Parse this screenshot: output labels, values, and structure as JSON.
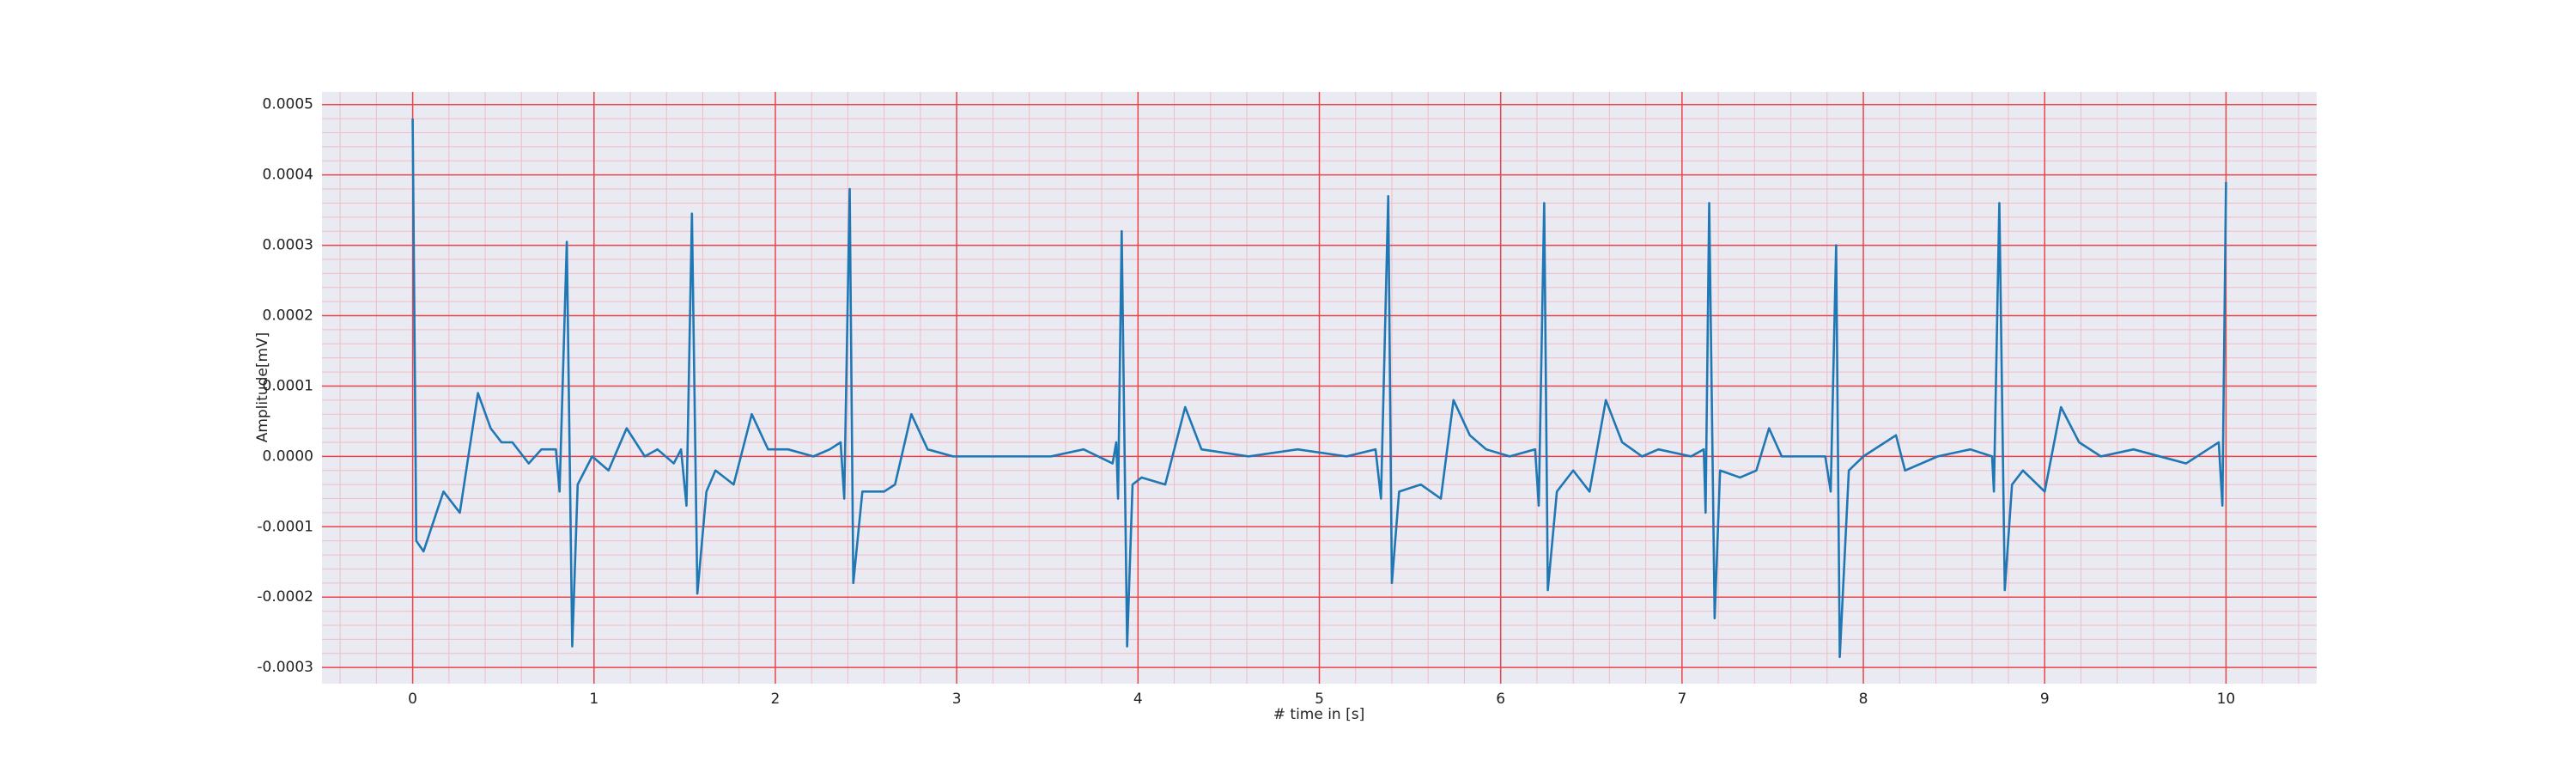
{
  "chart_data": {
    "type": "line",
    "xlabel": "# time in [s]",
    "ylabel": "Amplitude[mV]",
    "xlim": [
      -0.5,
      10.5
    ],
    "ylim": [
      -0.000323,
      0.000518
    ],
    "xticks": [
      0,
      1,
      2,
      3,
      4,
      5,
      6,
      7,
      8,
      9,
      10
    ],
    "yticks": [
      -0.0003,
      -0.0002,
      -0.0001,
      {
        "value": 0,
        "label": "0.0000"
      },
      0.0001,
      0.0002,
      0.0003,
      0.0004,
      0.0005
    ],
    "xticks_minor": [
      -0.4,
      -0.2,
      0.2,
      0.4,
      0.6,
      0.8,
      1.2,
      1.4,
      1.6,
      1.8,
      2.2,
      2.4,
      2.6,
      2.8,
      3.2,
      3.4,
      3.6,
      3.8,
      4.2,
      4.4,
      4.6,
      4.8,
      5.2,
      5.4,
      5.6,
      5.8,
      6.2,
      6.4,
      6.6,
      6.8,
      7.2,
      7.4,
      7.6,
      7.8,
      8.2,
      8.4,
      8.6,
      8.8,
      9.2,
      9.4,
      9.6,
      9.8,
      10.2,
      10.4
    ],
    "yticks_minor": [
      -0.00028,
      -0.00026,
      -0.00024,
      -0.00022,
      -0.00018,
      -0.00016,
      -0.00014,
      -0.00012,
      -8e-05,
      -6e-05,
      -4e-05,
      -2e-05,
      2e-05,
      4e-05,
      6e-05,
      8e-05,
      0.00012,
      0.00014,
      0.00016,
      0.00018,
      0.00022,
      0.00024,
      0.00026,
      0.00028,
      0.00032,
      0.00034,
      0.00036,
      0.00038,
      0.00042,
      0.00044,
      0.00046,
      0.00048
    ],
    "grid": true,
    "grid_color": "#e8454a",
    "minor_grid_color": "#f2bcc4",
    "background": "#eaeaf2",
    "x": [
      0.0,
      0.02,
      0.06,
      0.17,
      0.26,
      0.36,
      0.43,
      0.49,
      0.55,
      0.61,
      0.64,
      0.71,
      0.79,
      0.81,
      0.85,
      0.88,
      0.91,
      0.99,
      1.08,
      1.18,
      1.28,
      1.35,
      1.44,
      1.48,
      1.51,
      1.54,
      1.57,
      1.62,
      1.67,
      1.77,
      1.87,
      1.96,
      2.07,
      2.21,
      2.3,
      2.36,
      2.38,
      2.41,
      2.43,
      2.48,
      2.6,
      2.66,
      2.75,
      2.84,
      2.98,
      3.16,
      3.52,
      3.7,
      3.86,
      3.88,
      3.89,
      3.91,
      3.94,
      3.97,
      4.02,
      4.15,
      4.26,
      4.35,
      4.61,
      4.88,
      5.15,
      5.31,
      5.34,
      5.38,
      5.4,
      5.44,
      5.56,
      5.67,
      5.74,
      5.83,
      5.92,
      6.05,
      6.19,
      6.21,
      6.24,
      6.26,
      6.31,
      6.4,
      6.49,
      6.58,
      6.67,
      6.78,
      6.87,
      7.05,
      7.12,
      7.13,
      7.15,
      7.18,
      7.21,
      7.32,
      7.41,
      7.48,
      7.55,
      7.68,
      7.79,
      7.82,
      7.85,
      7.87,
      7.92,
      8.0,
      8.18,
      8.23,
      8.41,
      8.59,
      8.71,
      8.72,
      8.75,
      8.78,
      8.82,
      8.88,
      9.0,
      9.09,
      9.19,
      9.31,
      9.49,
      9.78,
      9.9,
      9.96,
      9.98,
      10.0
    ],
    "series": [
      {
        "color": "#1f77b4",
        "values": [
          0.00048,
          -0.00012,
          -0.000135,
          -5e-05,
          -8e-05,
          9e-05,
          4e-05,
          2e-05,
          2e-05,
          0,
          -1e-05,
          1e-05,
          1e-05,
          -5e-05,
          0.000305,
          -0.00027,
          -4e-05,
          0,
          -2e-05,
          4e-05,
          0,
          1e-05,
          -1e-05,
          1e-05,
          -7e-05,
          0.000345,
          -0.000195,
          -5e-05,
          -2e-05,
          -4e-05,
          6e-05,
          1e-05,
          1e-05,
          0,
          1e-05,
          2e-05,
          -6e-05,
          0.00038,
          -0.00018,
          -5e-05,
          -5e-05,
          -4e-05,
          6e-05,
          1e-05,
          0,
          0,
          0,
          1e-05,
          -1e-05,
          2e-05,
          -6e-05,
          0.00032,
          -0.00027,
          -4e-05,
          -3e-05,
          -4e-05,
          7e-05,
          1e-05,
          0,
          1e-05,
          0,
          1e-05,
          -6e-05,
          0.00037,
          -0.00018,
          -5e-05,
          -4e-05,
          -6e-05,
          8e-05,
          3e-05,
          1e-05,
          0,
          1e-05,
          -7e-05,
          0.00036,
          -0.00019,
          -5e-05,
          -2e-05,
          -5e-05,
          8e-05,
          2e-05,
          0,
          1e-05,
          0,
          1e-05,
          -8e-05,
          0.00036,
          -0.00023,
          -2e-05,
          -3e-05,
          -2e-05,
          4e-05,
          0,
          0,
          0,
          -5e-05,
          0.0003,
          -0.000285,
          -2e-05,
          0,
          3e-05,
          -2e-05,
          0,
          1e-05,
          0,
          -5e-05,
          0.00036,
          -0.00019,
          -4e-05,
          -2e-05,
          -5e-05,
          7e-05,
          2e-05,
          0,
          1e-05,
          -1e-05,
          1e-05,
          2e-05,
          -7e-05,
          0.00039
        ]
      }
    ]
  }
}
